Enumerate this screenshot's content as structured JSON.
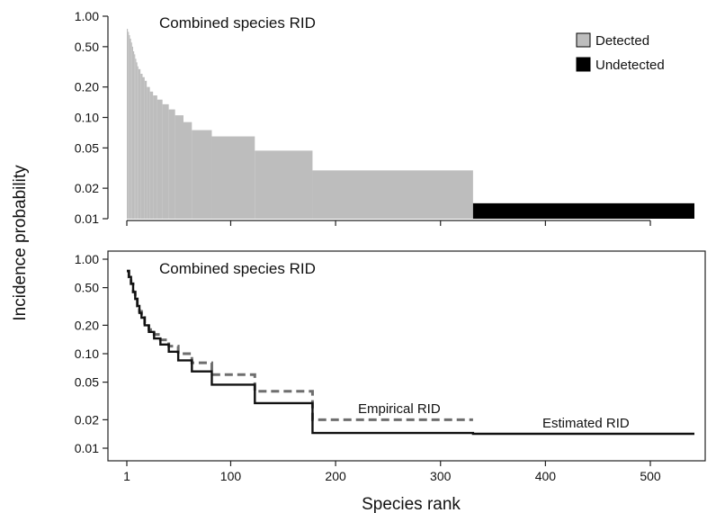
{
  "ylabel": "Incidence probability",
  "xlabel": "Species rank",
  "colors": {
    "detected": "#bdbdbd",
    "undetected": "#000000",
    "estimated_line": "#111111",
    "empirical_line": "#6e6e6e"
  },
  "chart_data": [
    {
      "type": "area",
      "title": "Combined species RID",
      "y_scale": "log",
      "ylim": [
        0.01,
        1.0
      ],
      "xlim": [
        1,
        542
      ],
      "y_ticks": [
        "1.00",
        "0.50",
        "0.20",
        "0.10",
        "0.05",
        "0.02",
        "0.01"
      ],
      "y_tick_values": [
        1.0,
        0.5,
        0.2,
        0.1,
        0.05,
        0.02,
        0.01
      ],
      "x_tick_values": [
        1,
        100,
        200,
        300,
        400,
        500
      ],
      "legend": [
        {
          "label": "Detected",
          "color": "#bdbdbd"
        },
        {
          "label": "Undetected",
          "color": "#000000"
        }
      ],
      "legend_position": "top-right",
      "series": [
        {
          "name": "Detected",
          "x": [
            1,
            2,
            3,
            4,
            5,
            6,
            7,
            8,
            9,
            10,
            11,
            12,
            14,
            16,
            18,
            20,
            23,
            26,
            30,
            35,
            41,
            47,
            55,
            63,
            82,
            123,
            178,
            331
          ],
          "y": [
            0.75,
            0.7,
            0.65,
            0.6,
            0.55,
            0.5,
            0.45,
            0.42,
            0.38,
            0.35,
            0.32,
            0.3,
            0.27,
            0.25,
            0.23,
            0.2,
            0.18,
            0.165,
            0.15,
            0.135,
            0.12,
            0.105,
            0.09,
            0.075,
            0.065,
            0.047,
            0.03,
            0.0142
          ]
        },
        {
          "name": "Undetected",
          "x": [
            331,
            542
          ],
          "y": [
            0.0142,
            0.0142
          ]
        }
      ]
    },
    {
      "type": "line",
      "title": "Combined species RID",
      "y_scale": "log",
      "ylim": [
        0.01,
        1.0
      ],
      "xlim": [
        1,
        542
      ],
      "y_ticks": [
        "1.00",
        "0.50",
        "0.20",
        "0.10",
        "0.05",
        "0.02",
        "0.01"
      ],
      "y_tick_values": [
        1.0,
        0.5,
        0.2,
        0.1,
        0.05,
        0.02,
        0.01
      ],
      "x_ticks": [
        "1",
        "100",
        "200",
        "300",
        "400",
        "500"
      ],
      "x_tick_values": [
        1,
        100,
        200,
        300,
        400,
        500
      ],
      "series": [
        {
          "name": "Estimated RID",
          "style": "solid",
          "x": [
            1,
            3,
            5,
            7,
            9,
            11,
            13,
            15,
            18,
            22,
            27,
            33,
            41,
            50,
            63,
            82,
            123,
            178,
            331,
            542
          ],
          "y": [
            0.75,
            0.65,
            0.55,
            0.45,
            0.38,
            0.32,
            0.27,
            0.24,
            0.2,
            0.17,
            0.145,
            0.125,
            0.105,
            0.085,
            0.065,
            0.047,
            0.03,
            0.0145,
            0.0142,
            0.0142
          ]
        },
        {
          "name": "Empirical RID",
          "style": "dashed",
          "x": [
            1,
            3,
            5,
            7,
            9,
            11,
            13,
            15,
            18,
            22,
            27,
            33,
            41,
            50,
            63,
            82,
            123,
            178,
            331
          ],
          "y": [
            0.75,
            0.65,
            0.55,
            0.45,
            0.38,
            0.32,
            0.28,
            0.25,
            0.21,
            0.18,
            0.16,
            0.14,
            0.12,
            0.1,
            0.08,
            0.06,
            0.04,
            0.02,
            0.02
          ]
        }
      ]
    }
  ]
}
